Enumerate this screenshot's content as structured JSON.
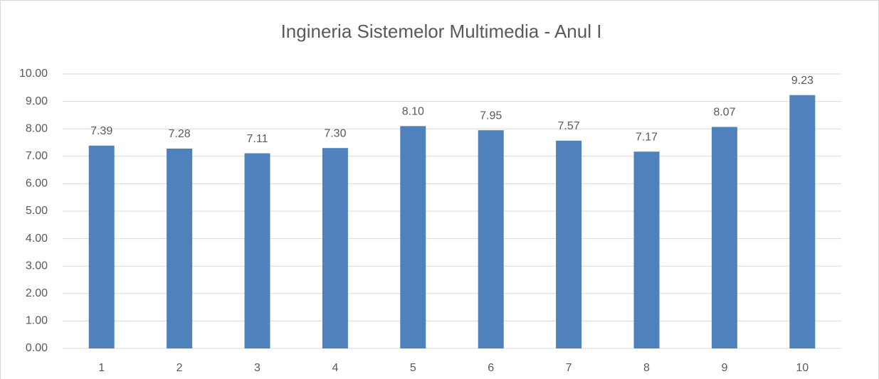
{
  "chart_data": {
    "type": "bar",
    "title": "Ingineria Sistemelor Multimedia - Anul I",
    "categories": [
      "1",
      "2",
      "3",
      "4",
      "5",
      "6",
      "7",
      "8",
      "9",
      "10"
    ],
    "values": [
      7.39,
      7.28,
      7.11,
      7.3,
      8.1,
      7.95,
      7.57,
      7.17,
      8.07,
      9.23
    ],
    "value_labels": [
      "7.39",
      "7.28",
      "7.11",
      "7.30",
      "8.10",
      "7.95",
      "7.57",
      "7.17",
      "8.07",
      "9.23"
    ],
    "color": "#4f81bd",
    "ylim": [
      0,
      10
    ],
    "yticks": [
      {
        "value": 0,
        "label": "0.00"
      },
      {
        "value": 1,
        "label": "1.00"
      },
      {
        "value": 2,
        "label": "2.00"
      },
      {
        "value": 3,
        "label": "3.00"
      },
      {
        "value": 4,
        "label": "4.00"
      },
      {
        "value": 5,
        "label": "5.00"
      },
      {
        "value": 6,
        "label": "6.00"
      },
      {
        "value": 7,
        "label": "7.00"
      },
      {
        "value": 8,
        "label": "8.00"
      },
      {
        "value": 9,
        "label": "9.00"
      },
      {
        "value": 10,
        "label": "10.00"
      }
    ],
    "grid": true
  }
}
